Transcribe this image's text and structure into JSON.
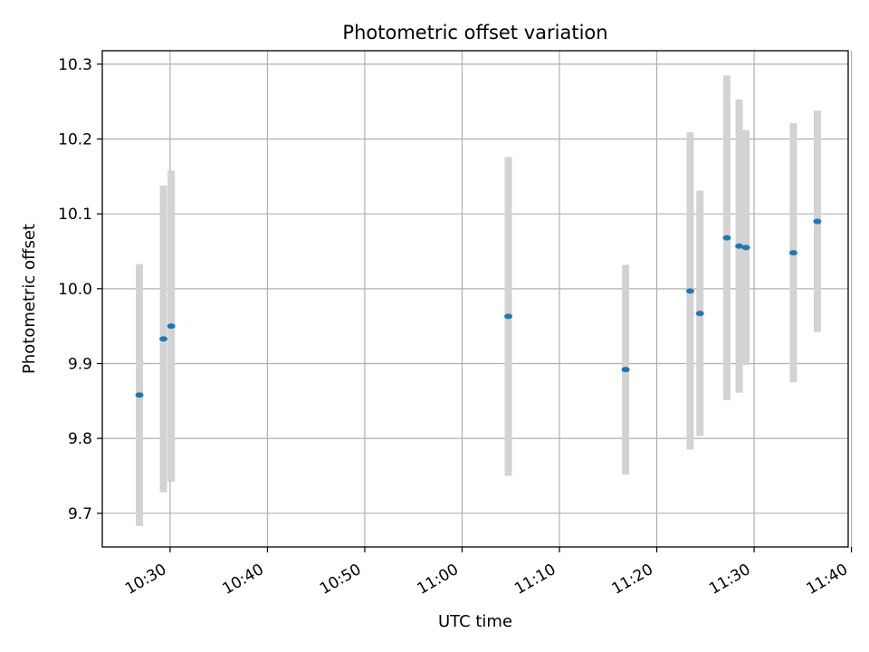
{
  "chart_data": {
    "type": "scatter",
    "title": "Photometric offset variation",
    "xlabel": "UTC time",
    "ylabel": "Photometric offset",
    "x_ticks": [
      "10:30",
      "10:40",
      "10:50",
      "11:00",
      "11:10",
      "11:20",
      "11:30",
      "11:40"
    ],
    "y_ticks": [
      "9.7",
      "9.8",
      "9.9",
      "10.0",
      "10.1",
      "10.2",
      "10.3"
    ],
    "xlim": [
      "10:23:02",
      "11:39:40"
    ],
    "ylim": [
      9.655,
      10.318
    ],
    "grid": true,
    "colors": {
      "point": "#1f77b4",
      "errorbar": "#d3d3d3",
      "grid": "#b0b0b0"
    },
    "points": [
      {
        "x": "10:26:51",
        "y": 9.858,
        "yerr": 0.175
      },
      {
        "x": "10:29:19",
        "y": 9.933,
        "yerr": 0.205
      },
      {
        "x": "10:30:07",
        "y": 9.95,
        "yerr": 0.208
      },
      {
        "x": "11:04:45",
        "y": 9.963,
        "yerr": 0.213
      },
      {
        "x": "11:16:48",
        "y": 9.892,
        "yerr": 0.14
      },
      {
        "x": "11:23:26",
        "y": 9.997,
        "yerr": 0.212
      },
      {
        "x": "11:24:26",
        "y": 9.967,
        "yerr": 0.164
      },
      {
        "x": "11:27:12",
        "y": 10.068,
        "yerr": 0.217
      },
      {
        "x": "11:28:28",
        "y": 10.057,
        "yerr": 0.196
      },
      {
        "x": "11:29:10",
        "y": 10.055,
        "yerr": 0.157
      },
      {
        "x": "11:34:02",
        "y": 10.048,
        "yerr": 0.173
      },
      {
        "x": "11:36:30",
        "y": 10.09,
        "yerr": 0.148
      }
    ]
  }
}
